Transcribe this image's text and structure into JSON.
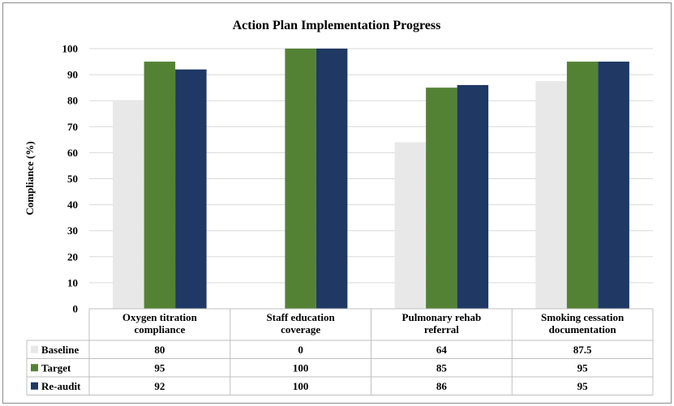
{
  "chart_data": {
    "type": "bar",
    "title": "Action Plan Implementation Progress",
    "ylabel": "Compliance (%)",
    "xlabel": "",
    "ylim": [
      0,
      100
    ],
    "yticks": [
      0,
      10,
      20,
      30,
      40,
      50,
      60,
      70,
      80,
      90,
      100
    ],
    "categories": [
      [
        "Oxygen titration",
        "compliance"
      ],
      [
        "Staff education",
        "coverage"
      ],
      [
        "Pulmonary rehab",
        "referral"
      ],
      [
        "Smoking cessation",
        "documentation"
      ]
    ],
    "series": [
      {
        "name": "Baseline",
        "color": "#e8e8e8",
        "values": [
          80,
          0,
          64,
          87.5
        ],
        "labels": [
          "80",
          "0",
          "64",
          "87.5"
        ]
      },
      {
        "name": "Target",
        "color": "#548235",
        "values": [
          95,
          100,
          85,
          95
        ],
        "labels": [
          "95",
          "100",
          "85",
          "95"
        ]
      },
      {
        "name": "Re-audit",
        "color": "#1f3864",
        "values": [
          92,
          100,
          86,
          95
        ],
        "labels": [
          "92",
          "100",
          "86",
          "95"
        ]
      }
    ],
    "grid": true,
    "legend": "data-table"
  }
}
